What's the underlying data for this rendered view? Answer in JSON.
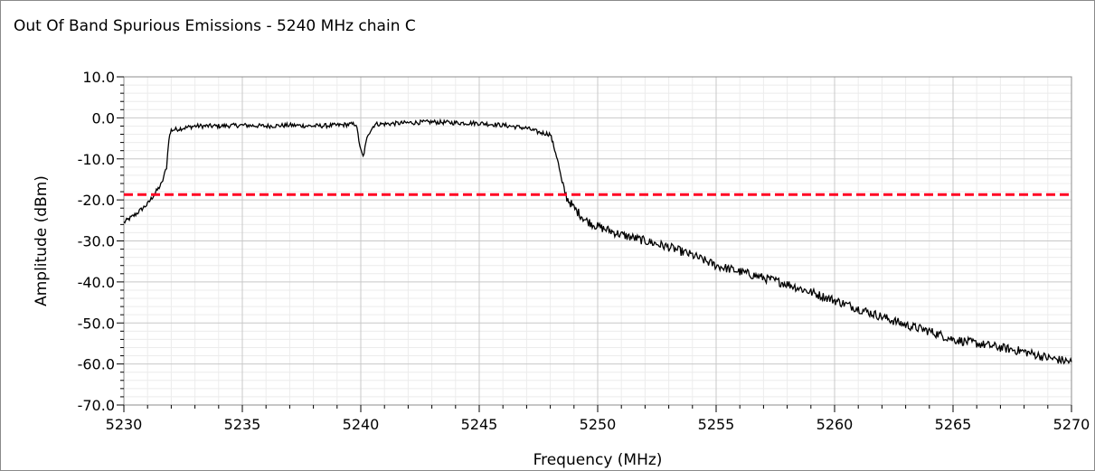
{
  "window": {
    "title": "Out Of Band Spurious Emissions - 5240 MHz chain C"
  },
  "chart_data": {
    "type": "line",
    "title": "Out Of Band Spurious Emissions - 5240 MHz chain C",
    "xlabel": "Frequency (MHz)",
    "ylabel": "Amplitude (dBm)",
    "xlim": [
      5230,
      5270
    ],
    "ylim": [
      -70,
      10
    ],
    "xticks": [
      "5230",
      "5235",
      "5240",
      "5245",
      "5250",
      "5255",
      "5260",
      "5265",
      "5270"
    ],
    "yticks": [
      "10.0",
      "0.0",
      "-10.0",
      "-20.0",
      "-30.0",
      "-40.0",
      "-50.0",
      "-60.0",
      "-70.0"
    ],
    "grid": true,
    "colors": {
      "trace": "#000000",
      "limit": "#ff0022",
      "grid_major": "#c8c8c8",
      "grid_minor": "#ececec"
    },
    "series": [
      {
        "type": "line",
        "x": [
          5230.0,
          5230.5,
          5231.0,
          5231.3,
          5231.6,
          5231.8,
          5231.9,
          5232.0,
          5232.5,
          5233.0,
          5234.0,
          5235.0,
          5236.0,
          5237.0,
          5238.0,
          5239.0,
          5239.8,
          5240.0,
          5240.1,
          5240.3,
          5240.6,
          5241.0,
          5242.0,
          5243.0,
          5244.0,
          5245.0,
          5246.0,
          5247.0,
          5247.5,
          5248.0,
          5248.3,
          5248.5,
          5248.7,
          5249.0,
          5249.5,
          5250.0,
          5251.0,
          5252.0,
          5253.0,
          5254.0,
          5255.0,
          5256.0,
          5257.0,
          5258.0,
          5259.0,
          5260.0,
          5261.0,
          5262.0,
          5263.0,
          5264.0,
          5265.0,
          5266.0,
          5267.0,
          5268.0,
          5269.0,
          5270.0
        ],
        "y": [
          -25.5,
          -23.5,
          -21.0,
          -18.5,
          -16.0,
          -12.0,
          -5.0,
          -3.0,
          -2.5,
          -2.0,
          -2.0,
          -1.8,
          -2.0,
          -1.8,
          -2.0,
          -1.8,
          -1.5,
          -8.0,
          -9.5,
          -4.0,
          -1.5,
          -1.5,
          -1.2,
          -1.0,
          -1.2,
          -1.3,
          -1.8,
          -2.5,
          -3.5,
          -4.0,
          -10.0,
          -16.0,
          -19.5,
          -22.0,
          -25.0,
          -26.5,
          -28.5,
          -30.0,
          -31.5,
          -33.5,
          -36.0,
          -37.5,
          -39.0,
          -40.5,
          -42.5,
          -44.5,
          -46.5,
          -48.5,
          -50.5,
          -52.0,
          -54.0,
          -55.0,
          -56.0,
          -57.0,
          -58.5,
          -59.5
        ]
      },
      {
        "type": "line",
        "x": [
          5230,
          5270
        ],
        "y": [
          -18.7,
          -18.7
        ]
      }
    ]
  }
}
